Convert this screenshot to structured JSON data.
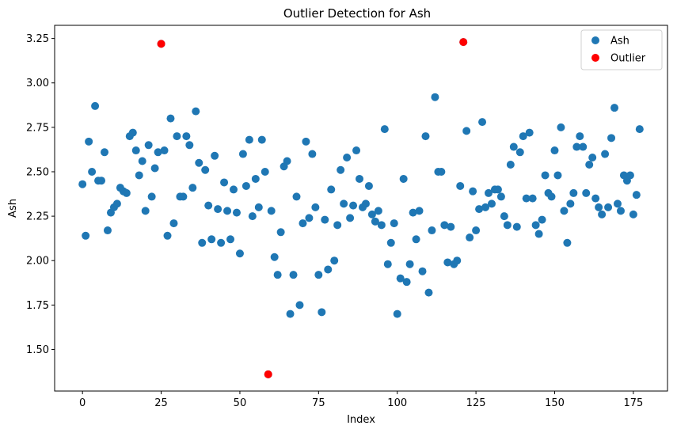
{
  "chart_data": {
    "type": "scatter",
    "title": "Outlier Detection for Ash",
    "xlabel": "Index",
    "ylabel": "Ash",
    "xlim": [
      -8.85,
      185.85
    ],
    "ylim": [
      1.266,
      3.324
    ],
    "xticks": [
      0,
      25,
      50,
      75,
      100,
      125,
      150,
      175
    ],
    "yticks": [
      1.5,
      1.75,
      2.0,
      2.25,
      2.5,
      2.75,
      3.0,
      3.25
    ],
    "legend_position": "top-right",
    "grid": false,
    "series": [
      {
        "name": "Ash",
        "color": "#1f77b4",
        "x": [
          0,
          1,
          2,
          3,
          4,
          5,
          6,
          7,
          8,
          9,
          10,
          11,
          12,
          13,
          14,
          15,
          16,
          17,
          18,
          19,
          20,
          21,
          22,
          23,
          24,
          25,
          26,
          27,
          28,
          29,
          30,
          31,
          32,
          33,
          34,
          35,
          36,
          37,
          38,
          39,
          40,
          41,
          42,
          43,
          44,
          45,
          46,
          47,
          48,
          49,
          50,
          51,
          52,
          53,
          54,
          55,
          56,
          57,
          58,
          59,
          60,
          61,
          62,
          63,
          64,
          65,
          66,
          67,
          68,
          69,
          70,
          71,
          72,
          73,
          74,
          75,
          76,
          77,
          78,
          79,
          80,
          81,
          82,
          83,
          84,
          85,
          86,
          87,
          88,
          89,
          90,
          91,
          92,
          93,
          94,
          95,
          96,
          97,
          98,
          99,
          100,
          101,
          102,
          103,
          104,
          105,
          106,
          107,
          108,
          109,
          110,
          111,
          112,
          113,
          114,
          115,
          116,
          117,
          118,
          119,
          120,
          121,
          122,
          123,
          124,
          125,
          126,
          127,
          128,
          129,
          130,
          131,
          132,
          133,
          134,
          135,
          136,
          137,
          138,
          139,
          140,
          141,
          142,
          143,
          144,
          145,
          146,
          147,
          148,
          149,
          150,
          151,
          152,
          153,
          154,
          155,
          156,
          157,
          158,
          159,
          160,
          161,
          162,
          163,
          164,
          165,
          166,
          167,
          168,
          169,
          170,
          171,
          172,
          173,
          174,
          175,
          176,
          177
        ],
        "y": [
          2.43,
          2.14,
          2.67,
          2.5,
          2.87,
          2.45,
          2.45,
          2.61,
          2.17,
          2.27,
          2.3,
          2.32,
          2.41,
          2.39,
          2.38,
          2.7,
          2.72,
          2.62,
          2.48,
          2.56,
          2.28,
          2.65,
          2.36,
          2.52,
          2.61,
          3.22,
          2.62,
          2.14,
          2.8,
          2.21,
          2.7,
          2.36,
          2.36,
          2.7,
          2.65,
          2.41,
          2.84,
          2.55,
          2.1,
          2.51,
          2.31,
          2.12,
          2.59,
          2.29,
          2.1,
          2.44,
          2.28,
          2.12,
          2.4,
          2.27,
          2.04,
          2.6,
          2.42,
          2.68,
          2.25,
          2.46,
          2.3,
          2.68,
          2.5,
          1.36,
          2.28,
          2.02,
          1.92,
          2.16,
          2.53,
          2.56,
          1.7,
          1.92,
          2.36,
          1.75,
          2.21,
          2.67,
          2.24,
          2.6,
          2.3,
          1.92,
          1.71,
          2.23,
          1.95,
          2.4,
          2.0,
          2.2,
          2.51,
          2.32,
          2.58,
          2.24,
          2.31,
          2.62,
          2.46,
          2.3,
          2.32,
          2.42,
          2.26,
          2.22,
          2.28,
          2.2,
          2.74,
          1.98,
          2.1,
          2.21,
          1.7,
          1.9,
          2.46,
          1.88,
          1.98,
          2.27,
          2.12,
          2.28,
          1.94,
          2.7,
          1.82,
          2.17,
          2.92,
          2.5,
          2.5,
          2.2,
          1.99,
          2.19,
          1.98,
          2.0,
          2.42,
          3.23,
          2.73,
          2.13,
          2.39,
          2.17,
          2.29,
          2.78,
          2.3,
          2.38,
          2.32,
          2.4,
          2.4,
          2.36,
          2.25,
          2.2,
          2.54,
          2.64,
          2.19,
          2.61,
          2.7,
          2.35,
          2.72,
          2.35,
          2.2,
          2.15,
          2.23,
          2.48,
          2.38,
          2.36,
          2.62,
          2.48,
          2.75,
          2.28,
          2.1,
          2.32,
          2.38,
          2.64,
          2.7,
          2.64,
          2.38,
          2.54,
          2.58,
          2.35,
          2.3,
          2.26,
          2.6,
          2.3,
          2.69,
          2.86,
          2.32,
          2.28,
          2.48,
          2.45,
          2.48,
          2.26,
          2.37,
          2.74
        ]
      },
      {
        "name": "Outlier",
        "color": "#ff0000",
        "x": [
          25,
          59,
          121
        ],
        "y": [
          3.22,
          1.36,
          3.23
        ]
      }
    ]
  }
}
